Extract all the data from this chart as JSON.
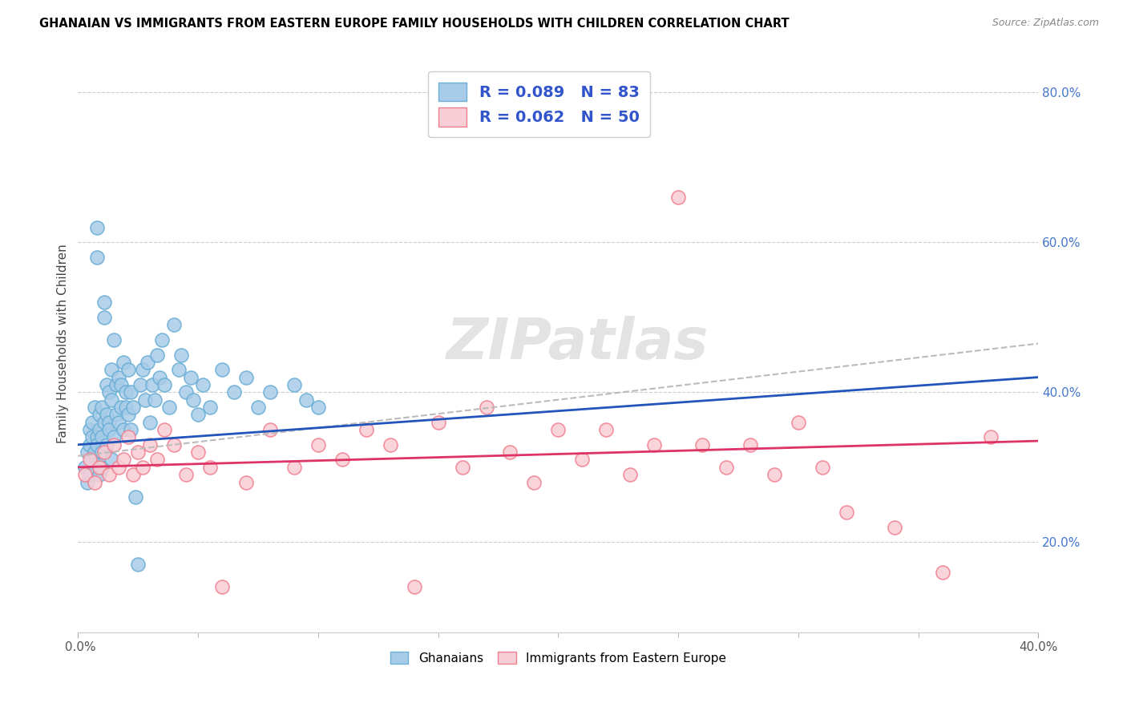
{
  "title": "GHANAIAN VS IMMIGRANTS FROM EASTERN EUROPE FAMILY HOUSEHOLDS WITH CHILDREN CORRELATION CHART",
  "source": "Source: ZipAtlas.com",
  "ylabel": "Family Households with Children",
  "right_yticks": [
    20.0,
    40.0,
    60.0,
    80.0
  ],
  "xlim": [
    0.0,
    0.4
  ],
  "ylim": [
    0.08,
    0.85
  ],
  "legend_blue_R": "R = 0.089",
  "legend_blue_N": "N = 83",
  "legend_pink_R": "R = 0.062",
  "legend_pink_N": "N = 50",
  "blue_color": "#a8cce8",
  "blue_edge_color": "#6aaed6",
  "pink_color": "#f9cdd5",
  "pink_edge_color": "#f08090",
  "blue_line_color": "#2255bb",
  "pink_line_color": "#dd3366",
  "dashed_line_color": "#bbbbbb",
  "legend_text_color": "#3355cc",
  "watermark": "ZIPatlas",
  "blue_scatter_x": [
    0.003,
    0.004,
    0.004,
    0.005,
    0.005,
    0.005,
    0.006,
    0.006,
    0.006,
    0.007,
    0.007,
    0.007,
    0.008,
    0.008,
    0.008,
    0.008,
    0.009,
    0.009,
    0.009,
    0.01,
    0.01,
    0.01,
    0.01,
    0.011,
    0.011,
    0.011,
    0.012,
    0.012,
    0.012,
    0.013,
    0.013,
    0.013,
    0.014,
    0.014,
    0.014,
    0.015,
    0.015,
    0.016,
    0.016,
    0.017,
    0.017,
    0.018,
    0.018,
    0.019,
    0.019,
    0.02,
    0.02,
    0.021,
    0.021,
    0.022,
    0.022,
    0.023,
    0.024,
    0.025,
    0.026,
    0.027,
    0.028,
    0.029,
    0.03,
    0.031,
    0.032,
    0.033,
    0.034,
    0.035,
    0.036,
    0.038,
    0.04,
    0.042,
    0.043,
    0.045,
    0.047,
    0.048,
    0.05,
    0.052,
    0.055,
    0.06,
    0.065,
    0.07,
    0.075,
    0.08,
    0.09,
    0.095,
    0.1
  ],
  "blue_scatter_y": [
    0.3,
    0.32,
    0.28,
    0.35,
    0.33,
    0.29,
    0.31,
    0.36,
    0.34,
    0.32,
    0.38,
    0.3,
    0.58,
    0.62,
    0.34,
    0.33,
    0.37,
    0.35,
    0.29,
    0.32,
    0.34,
    0.3,
    0.38,
    0.5,
    0.52,
    0.36,
    0.41,
    0.37,
    0.33,
    0.4,
    0.36,
    0.35,
    0.39,
    0.43,
    0.31,
    0.47,
    0.34,
    0.41,
    0.37,
    0.42,
    0.36,
    0.38,
    0.41,
    0.35,
    0.44,
    0.4,
    0.38,
    0.43,
    0.37,
    0.4,
    0.35,
    0.38,
    0.26,
    0.17,
    0.41,
    0.43,
    0.39,
    0.44,
    0.36,
    0.41,
    0.39,
    0.45,
    0.42,
    0.47,
    0.41,
    0.38,
    0.49,
    0.43,
    0.45,
    0.4,
    0.42,
    0.39,
    0.37,
    0.41,
    0.38,
    0.43,
    0.4,
    0.42,
    0.38,
    0.4,
    0.41,
    0.39,
    0.38
  ],
  "pink_scatter_x": [
    0.003,
    0.005,
    0.007,
    0.009,
    0.011,
    0.013,
    0.015,
    0.017,
    0.019,
    0.021,
    0.023,
    0.025,
    0.027,
    0.03,
    0.033,
    0.036,
    0.04,
    0.045,
    0.05,
    0.055,
    0.06,
    0.07,
    0.08,
    0.09,
    0.1,
    0.11,
    0.12,
    0.13,
    0.14,
    0.15,
    0.16,
    0.17,
    0.18,
    0.19,
    0.2,
    0.21,
    0.22,
    0.23,
    0.24,
    0.25,
    0.26,
    0.27,
    0.28,
    0.29,
    0.3,
    0.31,
    0.32,
    0.34,
    0.36,
    0.38
  ],
  "pink_scatter_y": [
    0.29,
    0.31,
    0.28,
    0.3,
    0.32,
    0.29,
    0.33,
    0.3,
    0.31,
    0.34,
    0.29,
    0.32,
    0.3,
    0.33,
    0.31,
    0.35,
    0.33,
    0.29,
    0.32,
    0.3,
    0.14,
    0.28,
    0.35,
    0.3,
    0.33,
    0.31,
    0.35,
    0.33,
    0.14,
    0.36,
    0.3,
    0.38,
    0.32,
    0.28,
    0.35,
    0.31,
    0.35,
    0.29,
    0.33,
    0.66,
    0.33,
    0.3,
    0.33,
    0.29,
    0.36,
    0.3,
    0.24,
    0.22,
    0.16,
    0.34
  ],
  "blue_trend_x": [
    0.0,
    0.4
  ],
  "blue_trend_y": [
    0.33,
    0.42
  ],
  "pink_trend_x": [
    0.0,
    0.4
  ],
  "pink_trend_y": [
    0.3,
    0.335
  ],
  "dashed_trend_x": [
    0.0,
    0.4
  ],
  "dashed_trend_y": [
    0.315,
    0.465
  ]
}
